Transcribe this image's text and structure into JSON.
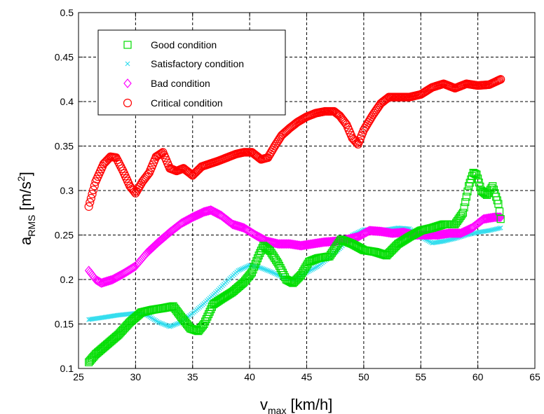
{
  "chart_data": {
    "type": "scatter",
    "xlabel": "v",
    "xlabel_sub": "max",
    "xlabel_unit": "[km/h]",
    "ylabel": "a",
    "ylabel_sub": "RMS",
    "ylabel_unit": "[m/s",
    "ylabel_sup": "2",
    "ylabel_close": "]",
    "xlim": [
      25,
      65
    ],
    "ylim": [
      0.1,
      0.5
    ],
    "xticks": [
      25,
      30,
      35,
      40,
      45,
      50,
      55,
      60,
      65
    ],
    "yticks": [
      0.1,
      0.15,
      0.2,
      0.25,
      0.3,
      0.35,
      0.4,
      0.45,
      0.5
    ],
    "xtick_labels": [
      "25",
      "30",
      "35",
      "40",
      "45",
      "50",
      "55",
      "60",
      "65"
    ],
    "ytick_labels": [
      "0.1",
      "0.15",
      "0.2",
      "0.25",
      "0.3",
      "0.35",
      "0.4",
      "0.45",
      "0.5"
    ],
    "grid": true,
    "legend_position": "top-left",
    "series": [
      {
        "name": "Good condition",
        "marker": "square",
        "color": "#00dd00",
        "x": [
          25.9,
          26.5,
          27.5,
          28.5,
          29.5,
          30.5,
          31.5,
          32.5,
          33.3,
          34.0,
          34.8,
          35.5,
          36.0,
          36.8,
          37.5,
          38.5,
          39.5,
          40.2,
          40.8,
          41.2,
          41.8,
          42.5,
          43.2,
          43.8,
          44.5,
          45.2,
          46.0,
          47.0,
          48.0,
          49.0,
          50.0,
          51.0,
          52.0,
          53.0,
          54.0,
          55.0,
          56.0,
          57.0,
          58.0,
          58.7,
          59.2,
          59.6,
          59.9,
          60.3,
          60.8,
          61.3,
          61.8,
          62.0
        ],
        "y": [
          0.107,
          0.116,
          0.127,
          0.138,
          0.152,
          0.163,
          0.166,
          0.168,
          0.17,
          0.158,
          0.145,
          0.142,
          0.15,
          0.172,
          0.178,
          0.186,
          0.197,
          0.208,
          0.227,
          0.238,
          0.232,
          0.218,
          0.2,
          0.196,
          0.205,
          0.22,
          0.224,
          0.226,
          0.245,
          0.24,
          0.233,
          0.231,
          0.227,
          0.24,
          0.248,
          0.255,
          0.258,
          0.262,
          0.262,
          0.275,
          0.305,
          0.32,
          0.318,
          0.3,
          0.295,
          0.305,
          0.285,
          0.268
        ]
      },
      {
        "name": "Satisfactory condition",
        "marker": "x",
        "color": "#33ddee",
        "x": [
          25.9,
          27.0,
          28.5,
          30.0,
          31.0,
          32.0,
          33.0,
          34.0,
          35.0,
          36.0,
          37.0,
          38.0,
          39.0,
          40.0,
          41.0,
          42.0,
          43.0,
          44.0,
          45.0,
          46.0,
          47.0,
          48.0,
          49.0,
          50.0,
          51.0,
          52.0,
          53.0,
          54.0,
          55.0,
          56.0,
          57.0,
          58.0,
          59.0,
          60.0,
          61.0,
          62.0
        ],
        "y": [
          0.155,
          0.157,
          0.16,
          0.162,
          0.16,
          0.152,
          0.147,
          0.152,
          0.162,
          0.173,
          0.185,
          0.198,
          0.21,
          0.216,
          0.213,
          0.208,
          0.202,
          0.2,
          0.208,
          0.215,
          0.225,
          0.236,
          0.25,
          0.256,
          0.256,
          0.256,
          0.258,
          0.257,
          0.248,
          0.241,
          0.243,
          0.246,
          0.25,
          0.253,
          0.255,
          0.258
        ]
      },
      {
        "name": "Bad condition",
        "marker": "diamond",
        "color": "#ff00ff",
        "x": [
          25.9,
          26.5,
          27.0,
          28.0,
          29.0,
          30.0,
          31.0,
          32.0,
          33.0,
          34.0,
          35.0,
          36.0,
          36.6,
          37.5,
          38.5,
          39.5,
          40.5,
          41.5,
          42.5,
          43.5,
          44.5,
          45.5,
          46.5,
          47.5,
          48.5,
          49.5,
          50.5,
          51.5,
          52.5,
          53.5,
          54.5,
          55.5,
          56.5,
          57.5,
          58.5,
          59.5,
          60.5,
          61.5,
          62.0
        ],
        "y": [
          0.21,
          0.2,
          0.196,
          0.2,
          0.207,
          0.215,
          0.23,
          0.242,
          0.253,
          0.263,
          0.27,
          0.276,
          0.278,
          0.272,
          0.262,
          0.258,
          0.25,
          0.243,
          0.24,
          0.24,
          0.238,
          0.24,
          0.242,
          0.243,
          0.245,
          0.248,
          0.255,
          0.254,
          0.252,
          0.253,
          0.25,
          0.25,
          0.25,
          0.252,
          0.252,
          0.258,
          0.268,
          0.27,
          0.27
        ]
      },
      {
        "name": "Critical condition",
        "marker": "circle",
        "color": "#ff0000",
        "x": [
          25.9,
          26.5,
          27.2,
          27.8,
          28.3,
          28.9,
          29.5,
          30.0,
          30.6,
          31.2,
          31.8,
          32.4,
          33.0,
          33.6,
          34.2,
          35.0,
          35.8,
          36.5,
          37.2,
          38.0,
          38.8,
          39.5,
          40.2,
          41.0,
          41.6,
          42.2,
          42.8,
          43.5,
          44.2,
          45.0,
          45.8,
          46.6,
          47.4,
          47.9,
          48.5,
          49.0,
          49.5,
          50.0,
          50.8,
          51.5,
          52.2,
          53.0,
          54.0,
          55.0,
          56.0,
          57.0,
          58.0,
          59.0,
          60.0,
          61.0,
          62.0
        ],
        "y": [
          0.282,
          0.31,
          0.33,
          0.338,
          0.337,
          0.322,
          0.305,
          0.297,
          0.31,
          0.32,
          0.338,
          0.343,
          0.325,
          0.322,
          0.325,
          0.317,
          0.327,
          0.33,
          0.333,
          0.337,
          0.341,
          0.343,
          0.343,
          0.335,
          0.337,
          0.35,
          0.362,
          0.37,
          0.377,
          0.383,
          0.387,
          0.389,
          0.389,
          0.384,
          0.374,
          0.359,
          0.352,
          0.368,
          0.385,
          0.398,
          0.405,
          0.405,
          0.405,
          0.408,
          0.416,
          0.42,
          0.415,
          0.42,
          0.418,
          0.419,
          0.425
        ]
      }
    ]
  }
}
